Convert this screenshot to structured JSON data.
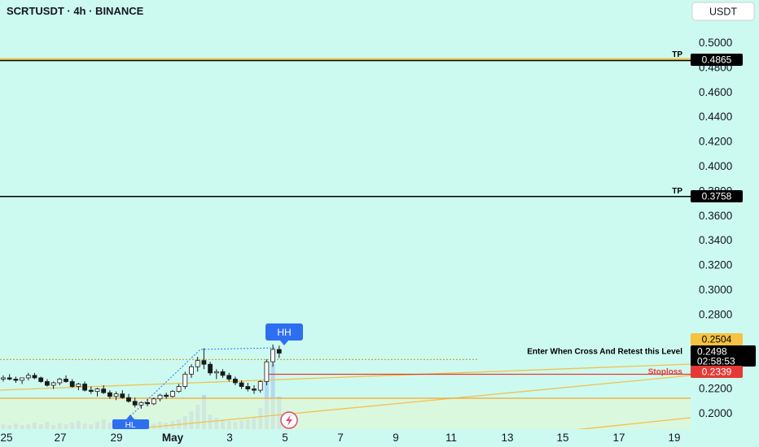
{
  "header": {
    "symbol_title": "SCRTUSDT · 4h · BINANCE",
    "currency_button": "USDT"
  },
  "price_axis": {
    "ticks": [
      "0.5000",
      "0.4800",
      "0.4600",
      "0.4400",
      "0.4200",
      "0.4000",
      "0.3800",
      "0.3600",
      "0.3400",
      "0.3200",
      "0.3000",
      "0.2800",
      "0.2600",
      "0.2400",
      "0.2200",
      "0.2000"
    ]
  },
  "time_axis": {
    "ticks": [
      "25",
      "27",
      "29",
      "May",
      "3",
      "5",
      "7",
      "9",
      "11",
      "13",
      "15",
      "17",
      "19"
    ]
  },
  "levels": {
    "tp1": {
      "label": "TP",
      "value_text": "0.4865",
      "color": "#000000"
    },
    "tp2": {
      "label": "TP",
      "value_text": "0.3758",
      "color": "#000000"
    },
    "entry": {
      "label": "Enter When Cross And Retest this Level",
      "value_text": "0.2504",
      "color": "#f5c242"
    },
    "current": {
      "value_text": "0.2498",
      "countdown": "02:58:53",
      "color": "#000000"
    },
    "stoploss": {
      "label": "Stoploss",
      "value_text": "0.2339",
      "color": "#e53935"
    }
  },
  "markers": {
    "hh": "HH",
    "bottom": "HL"
  },
  "colors": {
    "background": "#cdfaf0",
    "hh_badge": "#2e6ff2",
    "entry_line": "#c8a93a",
    "trend": "#f2c14e",
    "candle": "#1a1a1a",
    "volume": "#a9c9f2"
  },
  "chart_data": {
    "type": "candlestick",
    "symbol": "SCRTUSDT",
    "timeframe": "4h",
    "exchange": "BINANCE",
    "y_axis_range": [
      0.19,
      0.51
    ],
    "levels": {
      "tp_1": 0.4865,
      "tp_2": 0.3758,
      "entry": 0.2504,
      "last_price": 0.2498,
      "stoploss": 0.2339
    },
    "annotations": [
      "HH",
      "Enter When Cross And Retest this Level",
      "Stoploss",
      "TP"
    ],
    "candles": [
      [
        0.228,
        0.231,
        0.226,
        0.229
      ],
      [
        0.229,
        0.232,
        0.227,
        0.228
      ],
      [
        0.228,
        0.23,
        0.225,
        0.227
      ],
      [
        0.227,
        0.229,
        0.224,
        0.229
      ],
      [
        0.229,
        0.233,
        0.227,
        0.231
      ],
      [
        0.231,
        0.233,
        0.228,
        0.229
      ],
      [
        0.229,
        0.23,
        0.225,
        0.226
      ],
      [
        0.226,
        0.228,
        0.222,
        0.223
      ],
      [
        0.223,
        0.226,
        0.22,
        0.225
      ],
      [
        0.225,
        0.229,
        0.223,
        0.228
      ],
      [
        0.228,
        0.231,
        0.225,
        0.226
      ],
      [
        0.226,
        0.228,
        0.221,
        0.222
      ],
      [
        0.222,
        0.225,
        0.219,
        0.224
      ],
      [
        0.224,
        0.226,
        0.218,
        0.219
      ],
      [
        0.219,
        0.222,
        0.216,
        0.218
      ],
      [
        0.218,
        0.221,
        0.214,
        0.22
      ],
      [
        0.22,
        0.223,
        0.216,
        0.217
      ],
      [
        0.217,
        0.219,
        0.212,
        0.214
      ],
      [
        0.214,
        0.218,
        0.211,
        0.216
      ],
      [
        0.216,
        0.219,
        0.212,
        0.213
      ],
      [
        0.213,
        0.216,
        0.209,
        0.21
      ],
      [
        0.21,
        0.213,
        0.205,
        0.207
      ],
      [
        0.207,
        0.21,
        0.204,
        0.209
      ],
      [
        0.209,
        0.212,
        0.206,
        0.208
      ],
      [
        0.208,
        0.213,
        0.207,
        0.212
      ],
      [
        0.212,
        0.216,
        0.21,
        0.215
      ],
      [
        0.215,
        0.217,
        0.212,
        0.214
      ],
      [
        0.214,
        0.219,
        0.213,
        0.218
      ],
      [
        0.218,
        0.224,
        0.217,
        0.222
      ],
      [
        0.222,
        0.234,
        0.22,
        0.232
      ],
      [
        0.232,
        0.24,
        0.229,
        0.238
      ],
      [
        0.238,
        0.246,
        0.234,
        0.243
      ],
      [
        0.243,
        0.253,
        0.236,
        0.24
      ],
      [
        0.24,
        0.242,
        0.231,
        0.233
      ],
      [
        0.233,
        0.236,
        0.228,
        0.234
      ],
      [
        0.234,
        0.236,
        0.229,
        0.231
      ],
      [
        0.231,
        0.233,
        0.226,
        0.228
      ],
      [
        0.228,
        0.23,
        0.223,
        0.225
      ],
      [
        0.225,
        0.227,
        0.22,
        0.222
      ],
      [
        0.222,
        0.225,
        0.218,
        0.22
      ],
      [
        0.22,
        0.223,
        0.216,
        0.219
      ],
      [
        0.219,
        0.227,
        0.217,
        0.226
      ],
      [
        0.226,
        0.244,
        0.223,
        0.242
      ],
      [
        0.242,
        0.256,
        0.238,
        0.252
      ],
      [
        0.252,
        0.255,
        0.245,
        0.249
      ]
    ]
  }
}
